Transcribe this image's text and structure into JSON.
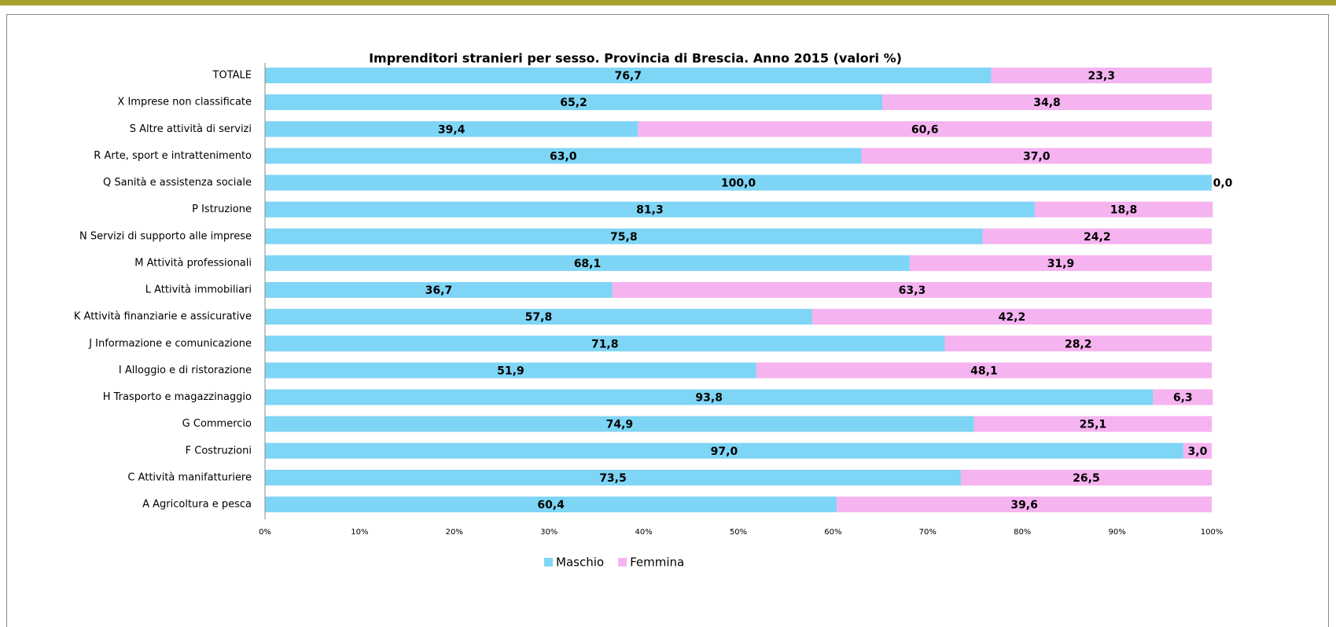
{
  "chart_data": {
    "type": "stacked-barh",
    "title": "Imprenditori stranieri per sesso. Provincia di Brescia. Anno 2015  (valori %)",
    "categories": [
      "TOTALE",
      "X Imprese non classificate",
      "S Altre attività di servizi",
      "R Arte, sport e intrattenimento",
      "Q Sanità e assistenza sociale",
      "P Istruzione",
      "N Servizi di supporto alle imprese",
      "M Attività professionali",
      "L Attività immobiliari",
      "K Attività finanziarie e assicurative",
      "J Informazione e comunicazione",
      "I Alloggio e di ristorazione",
      "H Trasporto e magazzinaggio",
      "G Commercio",
      "F Costruzioni",
      "C Attività manifatturiere",
      "A Agricoltura e pesca"
    ],
    "series": [
      {
        "name": "Maschio",
        "color": "#7fd5f5",
        "values": [
          76.7,
          65.2,
          39.4,
          63.0,
          100.0,
          81.3,
          75.8,
          68.1,
          36.7,
          57.8,
          71.8,
          51.9,
          93.8,
          74.9,
          97.0,
          73.5,
          60.4
        ],
        "value_labels": [
          "76,7",
          "65,2",
          "39,4",
          "63,0",
          "100,0",
          "81,3",
          "75,8",
          "68,1",
          "36,7",
          "57,8",
          "71,8",
          "51,9",
          "93,8",
          "74,9",
          "97,0",
          "73,5",
          "60,4"
        ]
      },
      {
        "name": "Femmina",
        "color": "#f5b3f0",
        "values": [
          23.3,
          34.8,
          60.6,
          37.0,
          0.0,
          18.8,
          24.2,
          31.9,
          63.3,
          42.2,
          28.2,
          48.1,
          6.3,
          25.1,
          3.0,
          26.5,
          39.6
        ],
        "value_labels": [
          "23,3",
          "34,8",
          "60,6",
          "37,0",
          "0,0",
          "18,8",
          "24,2",
          "31,9",
          "63,3",
          "42,2",
          "28,2",
          "48,1",
          "6,3",
          "25,1",
          "3,0",
          "26,5",
          "39,6"
        ]
      }
    ],
    "xlim": [
      0,
      100
    ],
    "xticks": [
      {
        "value": 0,
        "label": "0%"
      },
      {
        "value": 10,
        "label": "10%"
      },
      {
        "value": 20,
        "label": "20%"
      },
      {
        "value": 30,
        "label": "30%"
      },
      {
        "value": 40,
        "label": "40%"
      },
      {
        "value": 50,
        "label": "50%"
      },
      {
        "value": 60,
        "label": "60%"
      },
      {
        "value": 70,
        "label": "70%"
      },
      {
        "value": 80,
        "label": "80%"
      },
      {
        "value": 90,
        "label": "90%"
      },
      {
        "value": 100,
        "label": "100%"
      }
    ],
    "legend": "bottom"
  }
}
